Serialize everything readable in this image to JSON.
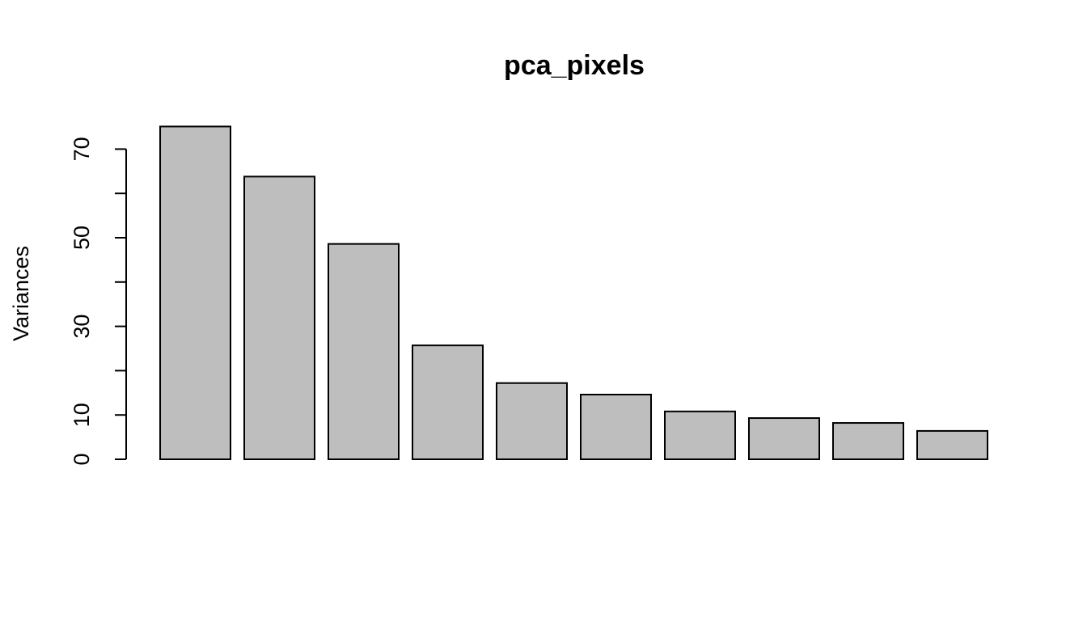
{
  "chart_data": {
    "type": "bar",
    "title": "pca_pixels",
    "xlabel": "",
    "ylabel": "Variances",
    "ylim": [
      0,
      75
    ],
    "yticks": [
      0,
      10,
      20,
      30,
      40,
      50,
      60,
      70
    ],
    "ytick_labels": [
      "0",
      "10",
      "",
      "30",
      "",
      "50",
      "",
      "70"
    ],
    "values": [
      75.1,
      63.8,
      48.6,
      25.7,
      17.2,
      14.6,
      10.8,
      9.3,
      8.2,
      6.4
    ],
    "bar_color": "#bebebe",
    "grid": false
  }
}
